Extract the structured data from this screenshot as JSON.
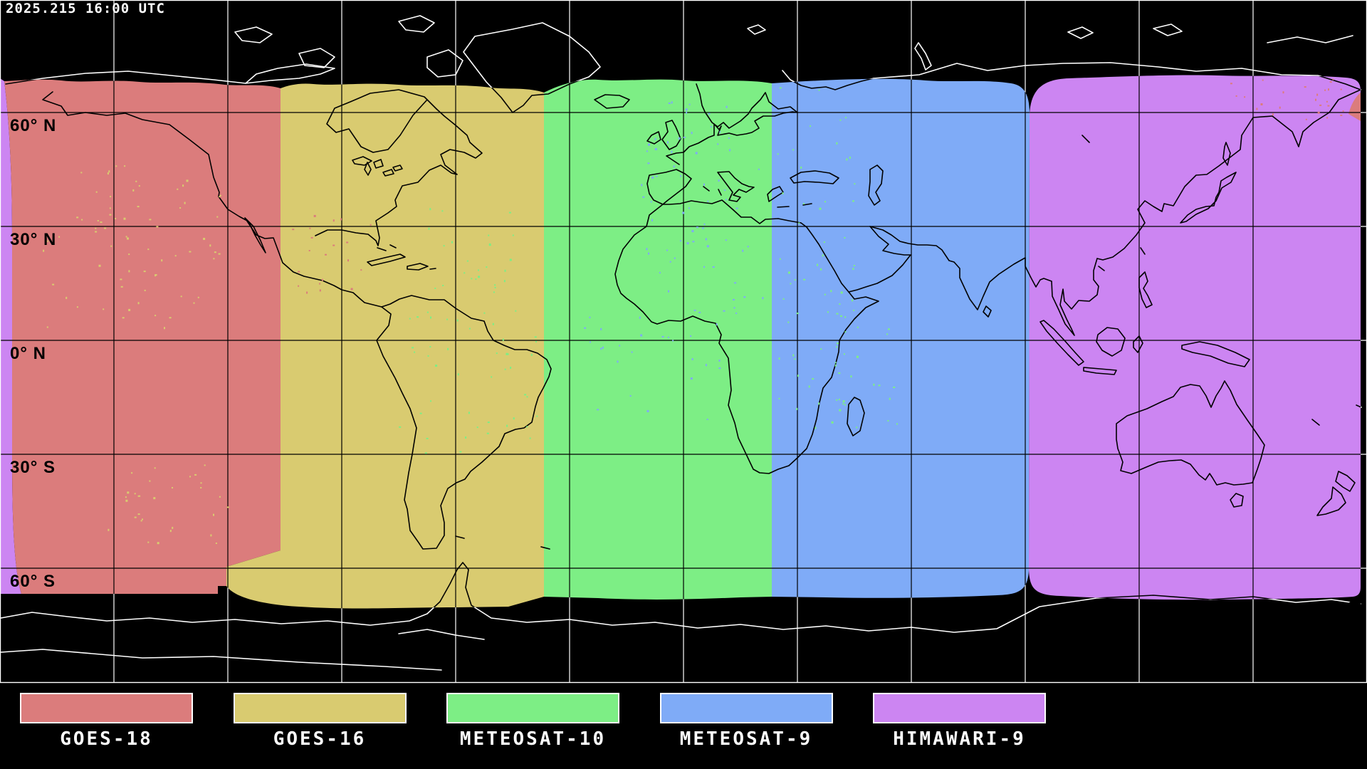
{
  "header": {
    "timestamp": "2025.215 16:00 UTC"
  },
  "map_data": {
    "type": "satellite-coverage-map",
    "projection": "equirectangular",
    "grid_spacing_degrees": 30,
    "latitude_labels": [
      {
        "label": "60° N",
        "lat": 60
      },
      {
        "label": "30° N",
        "lat": 30
      },
      {
        "label": "0° N",
        "lat": 0
      },
      {
        "label": "30° S",
        "lat": -30
      },
      {
        "label": "60° S",
        "lat": -60
      }
    ],
    "colors": {
      "background": "#000000",
      "gridline_on_dark": "#ffffff",
      "gridline_on_zone": "#000000",
      "coastline_on_dark": "#ffffff",
      "coastline_on_zone": "#000000",
      "border": "#ffffff"
    },
    "satellites": [
      {
        "id": "goes18",
        "label": "GOES-18",
        "color": "#DB7C7C",
        "lon_west": -180,
        "lon_east": -106.5,
        "wraps_antimeridian": true
      },
      {
        "id": "goes16",
        "label": "GOES-16",
        "color": "#D9CB70",
        "lon_west": -106.5,
        "lon_east": -37.5
      },
      {
        "id": "meteosat10",
        "label": "METEOSAT-10",
        "color": "#7DEE85",
        "lon_west": -37.5,
        "lon_east": 23
      },
      {
        "id": "meteosat9",
        "label": "METEOSAT-9",
        "color": "#7FABF7",
        "lon_west": 23,
        "lon_east": 92
      },
      {
        "id": "himawari9",
        "label": "HIMAWARI-9",
        "color": "#CC85F2",
        "lon_west": 92,
        "lon_east": 180,
        "wraps_antimeridian": true
      }
    ],
    "coverage_lat_north": 68,
    "coverage_lat_south": -66
  },
  "legend": {
    "items": [
      {
        "id": "goes18",
        "label": "GOES-18",
        "color": "#DB7C7C"
      },
      {
        "id": "goes16",
        "label": "GOES-16",
        "color": "#D9CB70"
      },
      {
        "id": "meteosat10",
        "label": "METEOSAT-10",
        "color": "#7DEE85"
      },
      {
        "id": "meteosat9",
        "label": "METEOSAT-9",
        "color": "#7FABF7"
      },
      {
        "id": "himawari9",
        "label": "HIMAWARI-9",
        "color": "#CC85F2"
      }
    ]
  }
}
